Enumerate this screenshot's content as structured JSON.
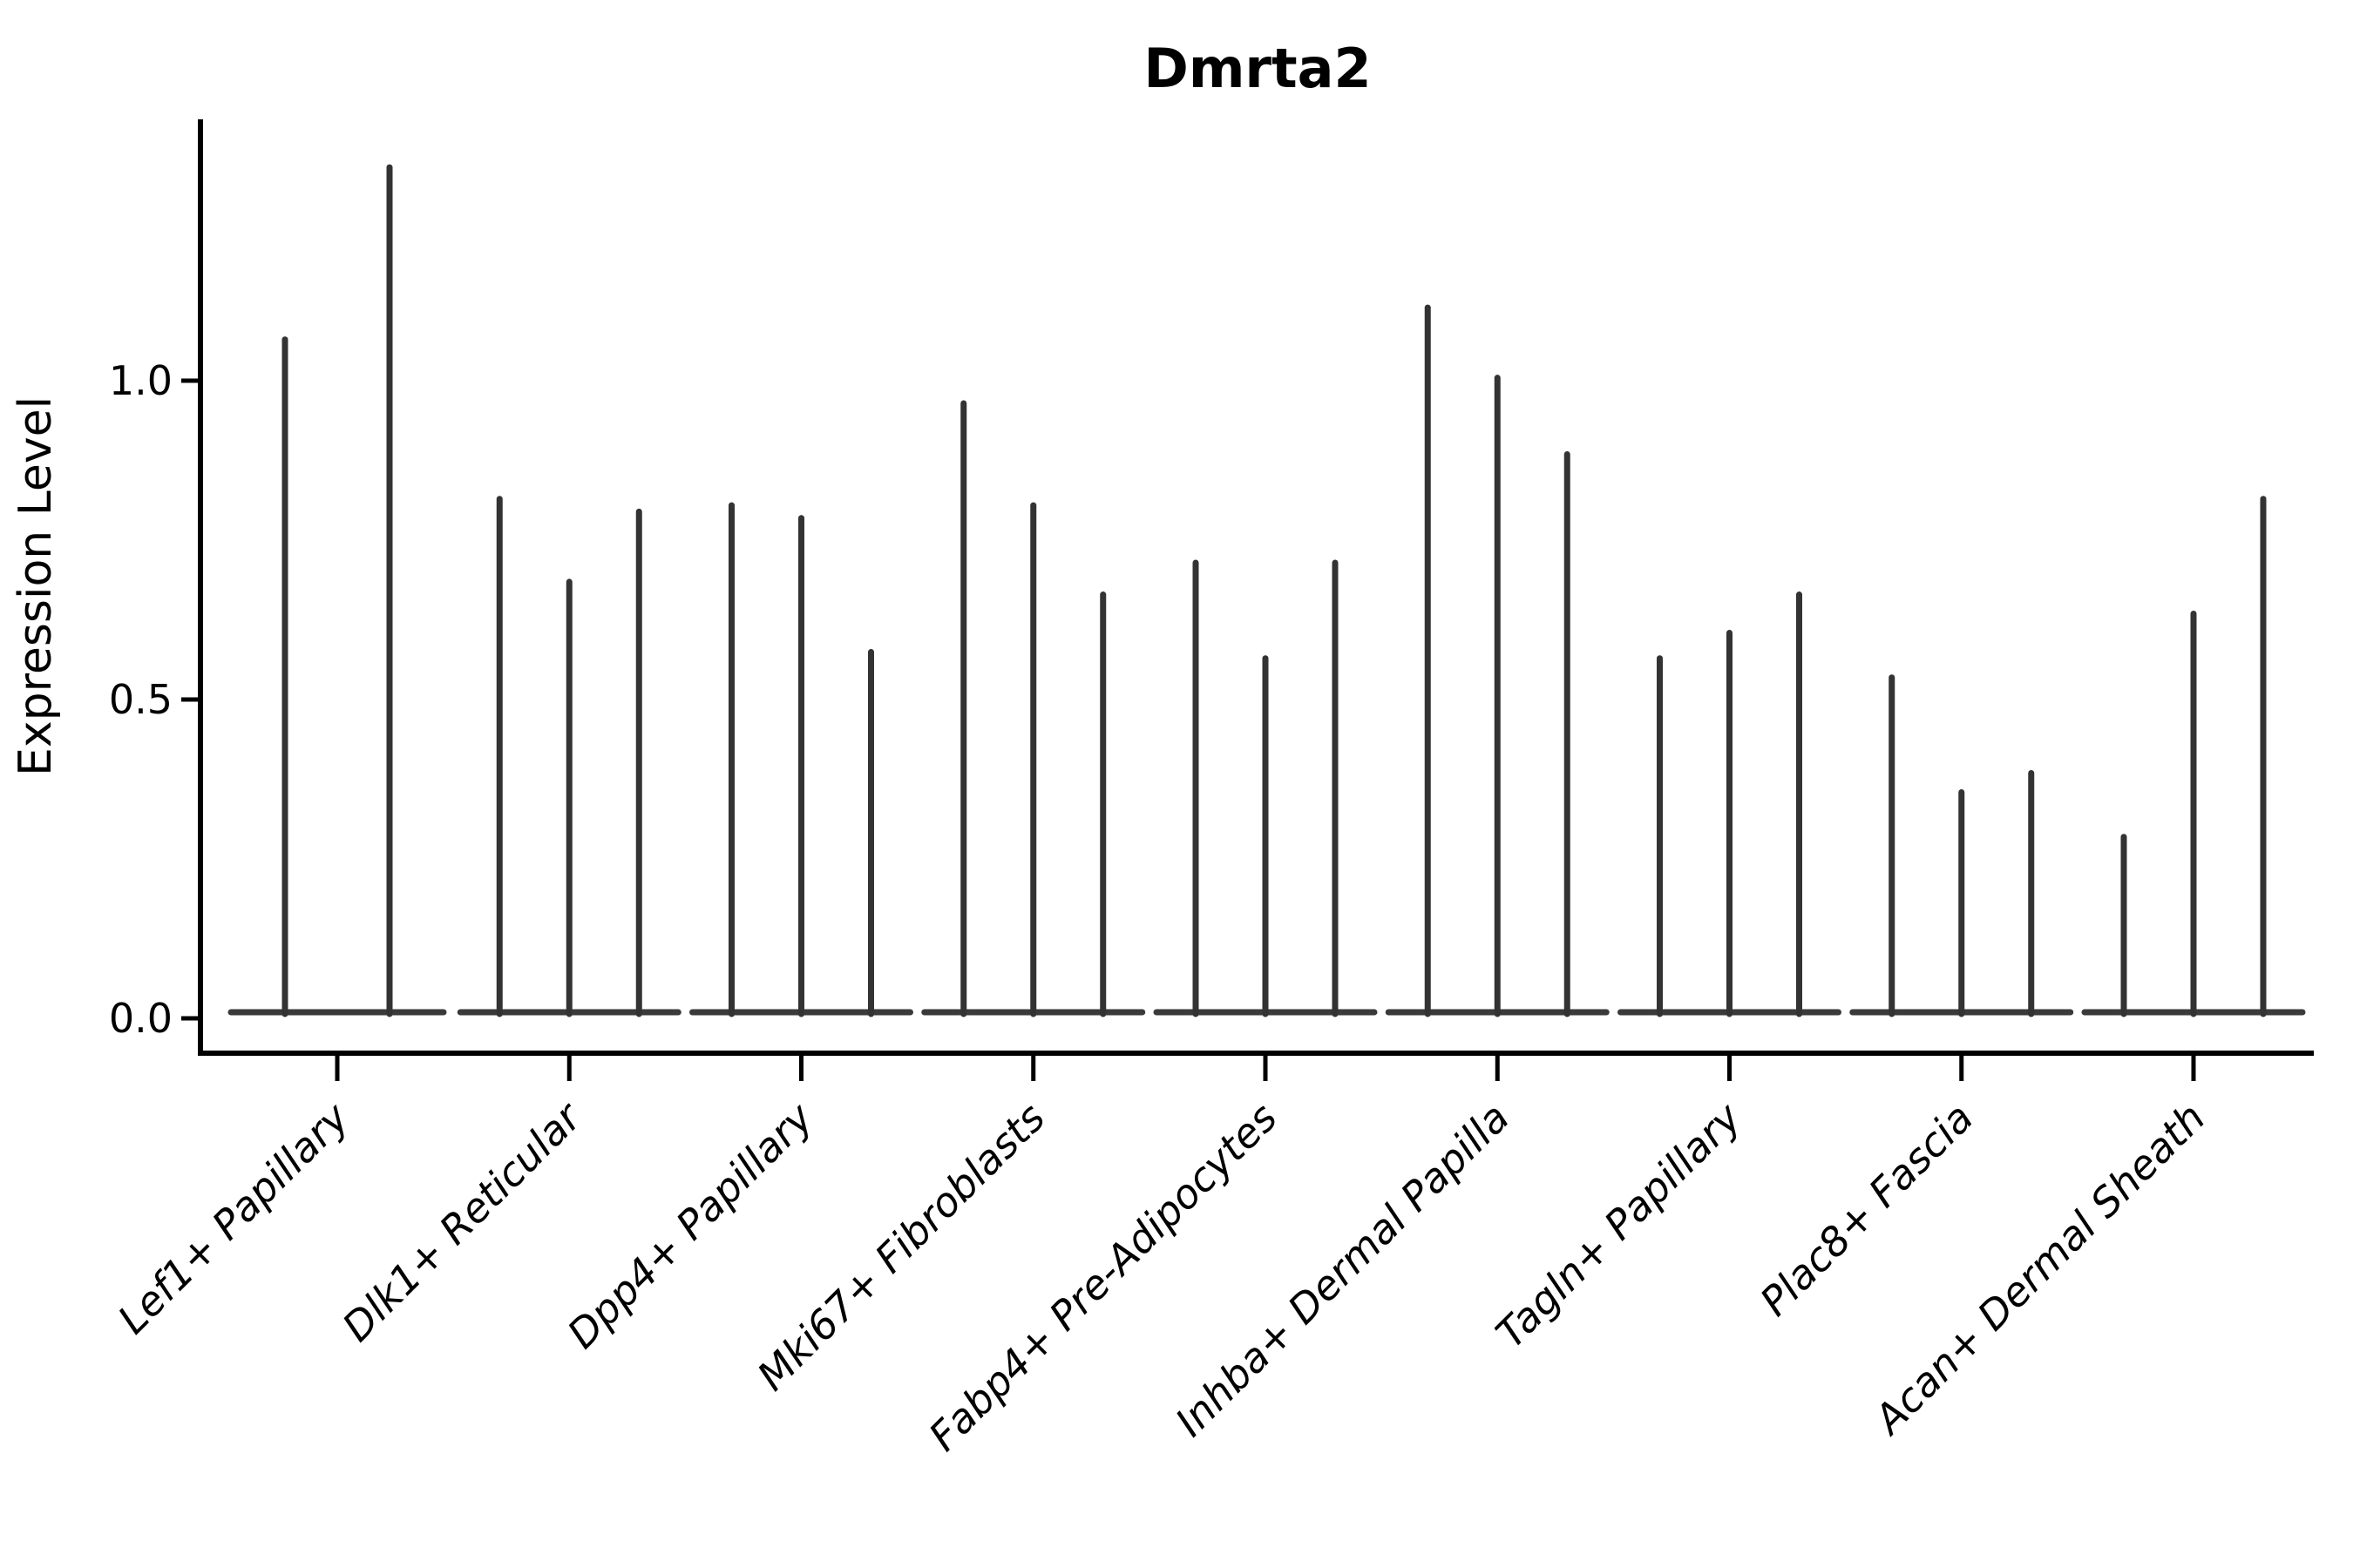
{
  "figure": {
    "title": "Dmrta2"
  },
  "colors": {
    "spike": "#333333",
    "violin_base": "#3a3a3a",
    "axis": "#000000",
    "text": "#000000",
    "background": "#ffffff"
  },
  "chart_data": {
    "type": "violin",
    "title": "Dmrta2",
    "xlabel": "",
    "ylabel": "Expression Level",
    "yticks": [
      0.0,
      0.5,
      1.0
    ],
    "ytick_labels": [
      "0.0",
      "0.5",
      "1.0"
    ],
    "ylim": [
      0,
      1.41
    ],
    "grid": false,
    "legend_position": "none",
    "x_tick_rotation_deg": 45,
    "categories": [
      "Lef1+ Papillary",
      "Dlk1+ Reticular",
      "Dpp4+ Papillary",
      "Mki67+ Fibroblasts",
      "Fabp4+ Pre-Adipocytes",
      "Inhba+ Dermal Papilla",
      "Tagln+ Papillary",
      "Plac8+ Fascia",
      "Acan+ Dermal Sheath"
    ],
    "violins": [
      {
        "category": "Lef1+ Papillary",
        "spike_maxima": [
          1.07,
          1.34
        ]
      },
      {
        "category": "Dlk1+ Reticular",
        "spike_maxima": [
          0.82,
          0.69,
          0.8
        ]
      },
      {
        "category": "Dpp4+ Papillary",
        "spike_maxima": [
          0.81,
          0.79,
          0.58
        ]
      },
      {
        "category": "Mki67+ Fibroblasts",
        "spike_maxima": [
          0.97,
          0.81,
          0.67
        ]
      },
      {
        "category": "Fabp4+ Pre-Adipocytes",
        "spike_maxima": [
          0.72,
          0.57,
          0.72
        ]
      },
      {
        "category": "Inhba+ Dermal Papilla",
        "spike_maxima": [
          1.12,
          1.01,
          0.89
        ]
      },
      {
        "category": "Tagln+ Papillary",
        "spike_maxima": [
          0.57,
          0.61,
          0.67
        ]
      },
      {
        "category": "Plac8+ Fascia",
        "spike_maxima": [
          0.54,
          0.36,
          0.39
        ]
      },
      {
        "category": "Acan+ Dermal Sheath",
        "spike_maxima": [
          0.29,
          0.64,
          0.82
        ]
      }
    ]
  }
}
